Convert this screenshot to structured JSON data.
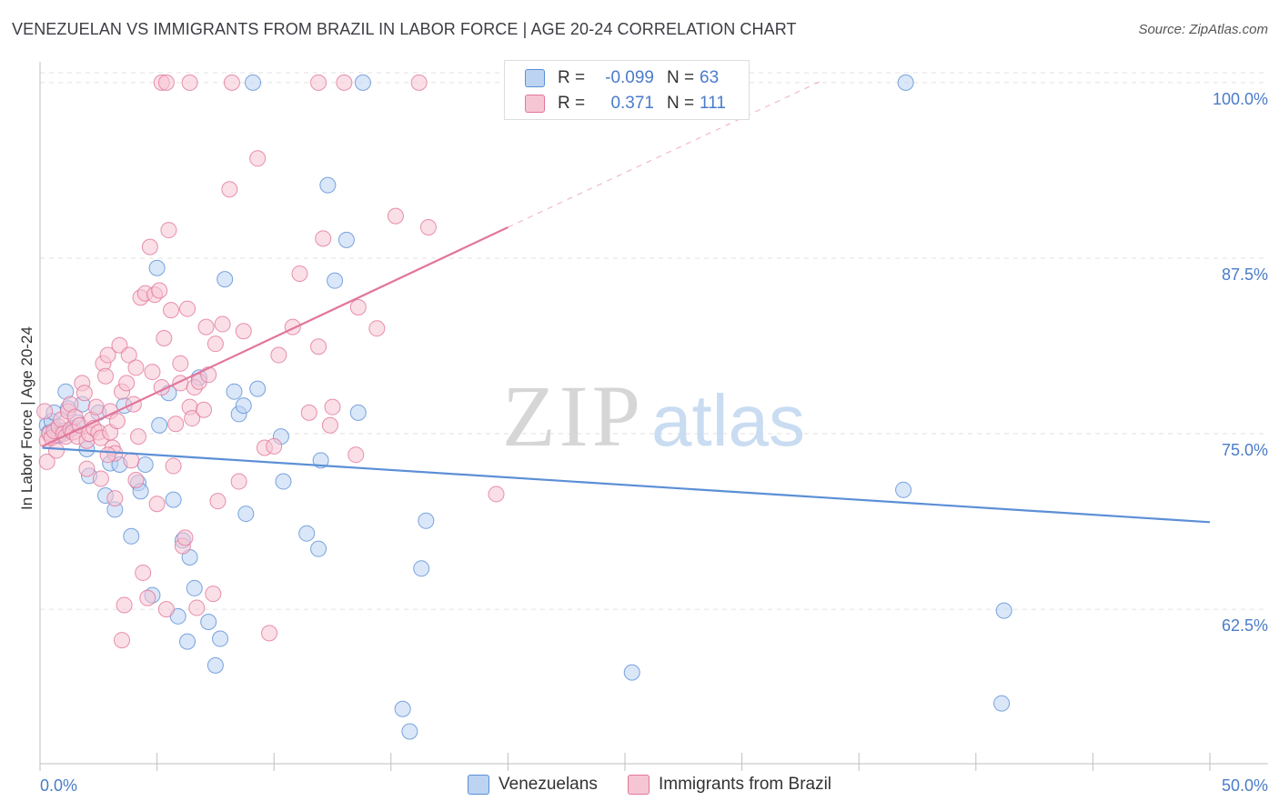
{
  "chart_data": {
    "type": "scatter",
    "title": "VENEZUELAN VS IMMIGRANTS FROM BRAZIL IN LABOR FORCE | AGE 20-24 CORRELATION CHART",
    "source": "Source: ZipAtlas.com",
    "ylabel": "In Labor Force | Age 20-24",
    "xlim": [
      0,
      50
    ],
    "ylim": [
      51.5,
      102
    ],
    "x_tick_labels": [
      {
        "value": 0,
        "label": "0.0%"
      },
      {
        "value": 50,
        "label": "50.0%"
      }
    ],
    "y_ticks": [
      {
        "value": 100,
        "label": "100.0%"
      },
      {
        "value": 87.5,
        "label": "87.5%"
      },
      {
        "value": 75,
        "label": "75.0%"
      },
      {
        "value": 62.5,
        "label": "62.5%"
      }
    ],
    "watermark": {
      "zip": "ZIP",
      "atlas": "atlas"
    },
    "legend": {
      "r_label": "R =",
      "n_label": "N =",
      "entries": [
        {
          "r": "-0.099",
          "n": "63"
        },
        {
          "r": "0.371",
          "n": "111"
        }
      ]
    },
    "series": [
      {
        "name": "Venezuelans",
        "color": "#5b8fd6",
        "fill": "#bcd3f2",
        "trend": {
          "x1": 0.1,
          "y1": 74.0,
          "x2": 50,
          "y2": 68.7
        },
        "points": [
          [
            0.3,
            75.6
          ],
          [
            0.4,
            75.1
          ],
          [
            0.5,
            75.9
          ],
          [
            0.6,
            76.5
          ],
          [
            0.7,
            75.3
          ],
          [
            0.8,
            74.9
          ],
          [
            1.0,
            75.2
          ],
          [
            1.1,
            78.0
          ],
          [
            1.2,
            76.8
          ],
          [
            1.4,
            75.4
          ],
          [
            1.6,
            75.8
          ],
          [
            1.8,
            77.1
          ],
          [
            2.0,
            73.9
          ],
          [
            2.1,
            72.0
          ],
          [
            2.5,
            76.5
          ],
          [
            2.8,
            70.6
          ],
          [
            3.0,
            72.9
          ],
          [
            3.2,
            69.6
          ],
          [
            3.4,
            72.8
          ],
          [
            3.6,
            77.0
          ],
          [
            3.9,
            67.7
          ],
          [
            4.2,
            71.5
          ],
          [
            4.3,
            70.9
          ],
          [
            4.5,
            72.8
          ],
          [
            4.8,
            63.5
          ],
          [
            5.0,
            86.8
          ],
          [
            5.1,
            75.6
          ],
          [
            5.5,
            77.9
          ],
          [
            5.7,
            70.3
          ],
          [
            5.9,
            62.0
          ],
          [
            6.1,
            67.4
          ],
          [
            6.3,
            60.2
          ],
          [
            6.4,
            66.2
          ],
          [
            6.6,
            64.0
          ],
          [
            6.8,
            79.0
          ],
          [
            7.2,
            61.6
          ],
          [
            7.5,
            58.5
          ],
          [
            7.7,
            60.4
          ],
          [
            7.9,
            86.0
          ],
          [
            8.3,
            78.0
          ],
          [
            8.5,
            76.4
          ],
          [
            8.7,
            77.0
          ],
          [
            8.8,
            69.3
          ],
          [
            9.1,
            100.0
          ],
          [
            9.3,
            78.2
          ],
          [
            10.3,
            74.8
          ],
          [
            10.4,
            71.6
          ],
          [
            11.4,
            67.9
          ],
          [
            11.9,
            66.8
          ],
          [
            12.0,
            73.1
          ],
          [
            12.3,
            92.7
          ],
          [
            12.6,
            85.9
          ],
          [
            13.1,
            88.8
          ],
          [
            13.6,
            76.5
          ],
          [
            13.8,
            100.0
          ],
          [
            15.5,
            55.4
          ],
          [
            15.8,
            53.8
          ],
          [
            16.3,
            65.4
          ],
          [
            16.5,
            68.8
          ],
          [
            25.3,
            58.0
          ],
          [
            36.9,
            71.0
          ],
          [
            37.0,
            100.0
          ],
          [
            41.1,
            55.8
          ],
          [
            41.2,
            62.4
          ]
        ]
      },
      {
        "name": "Immigrants from Brazil",
        "color": "#e2769a",
        "fill": "#f6c5d4",
        "trend": {
          "x1": 0.1,
          "y1": 74.1,
          "x2": 20.0,
          "y2": 89.7
        },
        "trend_ext": {
          "x1": 20.0,
          "y1": 89.7,
          "x2": 33.5,
          "y2": 100.2
        },
        "points": [
          [
            0.2,
            76.6
          ],
          [
            0.3,
            74.5
          ],
          [
            0.3,
            73.0
          ],
          [
            0.4,
            75.0
          ],
          [
            0.5,
            74.7
          ],
          [
            0.6,
            75.2
          ],
          [
            0.7,
            73.8
          ],
          [
            0.8,
            75.5
          ],
          [
            0.9,
            76.0
          ],
          [
            1.0,
            75.0
          ],
          [
            1.1,
            74.8
          ],
          [
            1.2,
            76.6
          ],
          [
            1.3,
            75.3
          ],
          [
            1.3,
            77.1
          ],
          [
            1.4,
            75.1
          ],
          [
            1.5,
            76.2
          ],
          [
            1.6,
            74.8
          ],
          [
            1.7,
            75.6
          ],
          [
            1.8,
            78.6
          ],
          [
            1.9,
            77.9
          ],
          [
            2.0,
            74.5
          ],
          [
            2.0,
            72.5
          ],
          [
            2.1,
            75.0
          ],
          [
            2.2,
            76.0
          ],
          [
            2.3,
            75.4
          ],
          [
            2.4,
            76.9
          ],
          [
            2.5,
            75.1
          ],
          [
            2.6,
            74.7
          ],
          [
            2.6,
            71.8
          ],
          [
            2.7,
            80.0
          ],
          [
            2.8,
            79.1
          ],
          [
            2.9,
            80.6
          ],
          [
            3.0,
            75.1
          ],
          [
            3.0,
            76.6
          ],
          [
            3.1,
            74.0
          ],
          [
            3.2,
            73.6
          ],
          [
            3.2,
            70.4
          ],
          [
            3.3,
            75.9
          ],
          [
            3.4,
            81.3
          ],
          [
            3.5,
            78.0
          ],
          [
            3.5,
            60.3
          ],
          [
            3.6,
            62.8
          ],
          [
            3.7,
            78.6
          ],
          [
            3.8,
            80.6
          ],
          [
            3.9,
            73.1
          ],
          [
            4.0,
            77.1
          ],
          [
            4.1,
            79.7
          ],
          [
            4.2,
            74.8
          ],
          [
            4.3,
            84.7
          ],
          [
            4.4,
            65.1
          ],
          [
            4.5,
            85.0
          ],
          [
            4.6,
            63.3
          ],
          [
            4.7,
            88.3
          ],
          [
            4.8,
            79.4
          ],
          [
            4.9,
            84.9
          ],
          [
            5.0,
            70.0
          ],
          [
            5.1,
            85.2
          ],
          [
            5.2,
            78.3
          ],
          [
            5.3,
            81.8
          ],
          [
            5.4,
            62.5
          ],
          [
            5.5,
            89.5
          ],
          [
            5.6,
            83.8
          ],
          [
            5.7,
            72.7
          ],
          [
            5.8,
            75.7
          ],
          [
            6.0,
            80.0
          ],
          [
            6.0,
            78.6
          ],
          [
            6.1,
            67.0
          ],
          [
            6.2,
            67.6
          ],
          [
            6.3,
            83.9
          ],
          [
            6.4,
            76.9
          ],
          [
            6.5,
            76.1
          ],
          [
            6.6,
            78.3
          ],
          [
            6.7,
            62.6
          ],
          [
            6.8,
            78.7
          ],
          [
            7.0,
            76.7
          ],
          [
            7.1,
            82.6
          ],
          [
            7.2,
            79.2
          ],
          [
            7.4,
            63.6
          ],
          [
            7.5,
            81.4
          ],
          [
            7.6,
            70.2
          ],
          [
            7.8,
            82.8
          ],
          [
            8.1,
            92.4
          ],
          [
            8.5,
            71.6
          ],
          [
            8.7,
            82.3
          ],
          [
            9.3,
            94.6
          ],
          [
            9.6,
            74.0
          ],
          [
            9.8,
            60.8
          ],
          [
            10.0,
            74.1
          ],
          [
            10.2,
            80.6
          ],
          [
            10.8,
            82.6
          ],
          [
            11.1,
            86.4
          ],
          [
            11.5,
            76.5
          ],
          [
            11.9,
            81.2
          ],
          [
            12.1,
            88.9
          ],
          [
            12.4,
            75.6
          ],
          [
            12.5,
            76.9
          ],
          [
            13.0,
            100.0
          ],
          [
            13.6,
            84.0
          ],
          [
            14.4,
            82.5
          ],
          [
            15.2,
            90.5
          ],
          [
            16.2,
            100.0
          ],
          [
            16.6,
            89.7
          ],
          [
            19.5,
            70.7
          ],
          [
            5.2,
            100.0
          ],
          [
            5.4,
            100.0
          ],
          [
            6.4,
            100.0
          ],
          [
            8.2,
            100.0
          ],
          [
            11.9,
            100.0
          ],
          [
            13.5,
            73.5
          ],
          [
            4.1,
            71.7
          ],
          [
            2.9,
            73.5
          ]
        ]
      }
    ]
  }
}
